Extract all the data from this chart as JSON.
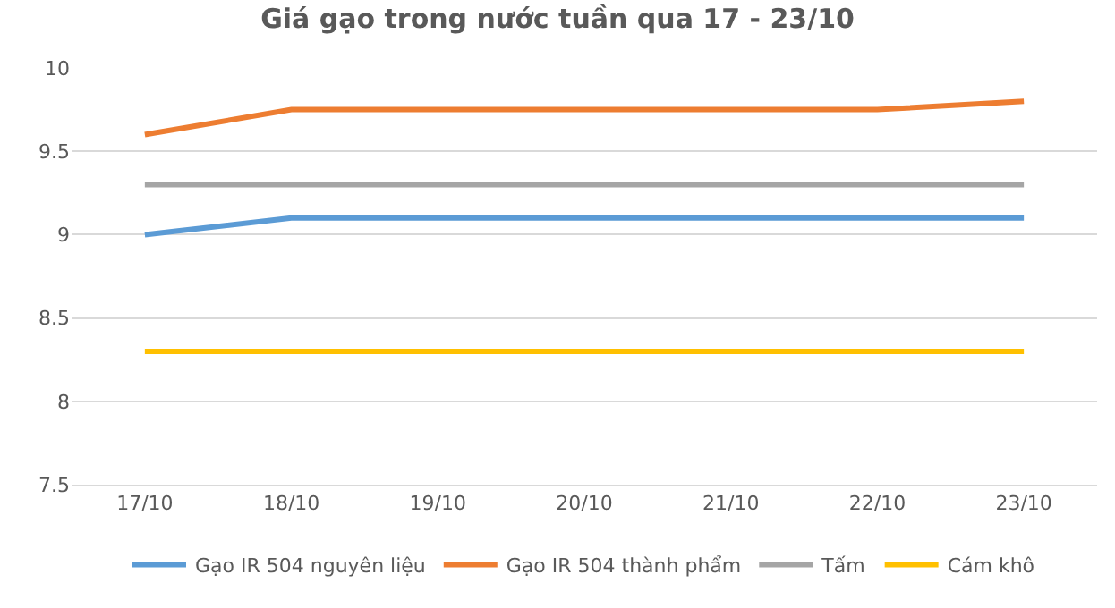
{
  "chart_data": {
    "type": "line",
    "title": "Giá gạo trong nước tuần qua 17 - 23/10",
    "categories": [
      "17/10",
      "18/10",
      "19/10",
      "20/10",
      "21/10",
      "22/10",
      "23/10"
    ],
    "series": [
      {
        "name": "Gạo IR 504 nguyên liệu",
        "color": "#5b9bd5",
        "values": [
          9.0,
          9.1,
          9.1,
          9.1,
          9.1,
          9.1,
          9.1
        ]
      },
      {
        "name": "Gạo IR 504 thành phẩm",
        "color": "#ed7d31",
        "values": [
          9.6,
          9.75,
          9.75,
          9.75,
          9.75,
          9.75,
          9.8
        ]
      },
      {
        "name": "Tấm",
        "color": "#a5a5a5",
        "values": [
          9.3,
          9.3,
          9.3,
          9.3,
          9.3,
          9.3,
          9.3
        ]
      },
      {
        "name": "Cám khô",
        "color": "#ffc000",
        "values": [
          8.3,
          8.3,
          8.3,
          8.3,
          8.3,
          8.3,
          8.3
        ]
      }
    ],
    "ylim": [
      7.5,
      10
    ],
    "yticks": [
      7.5,
      8,
      8.5,
      9,
      9.5,
      10
    ],
    "grid": "y",
    "legend": "bottom",
    "marker": "none",
    "line_style": "solid"
  }
}
